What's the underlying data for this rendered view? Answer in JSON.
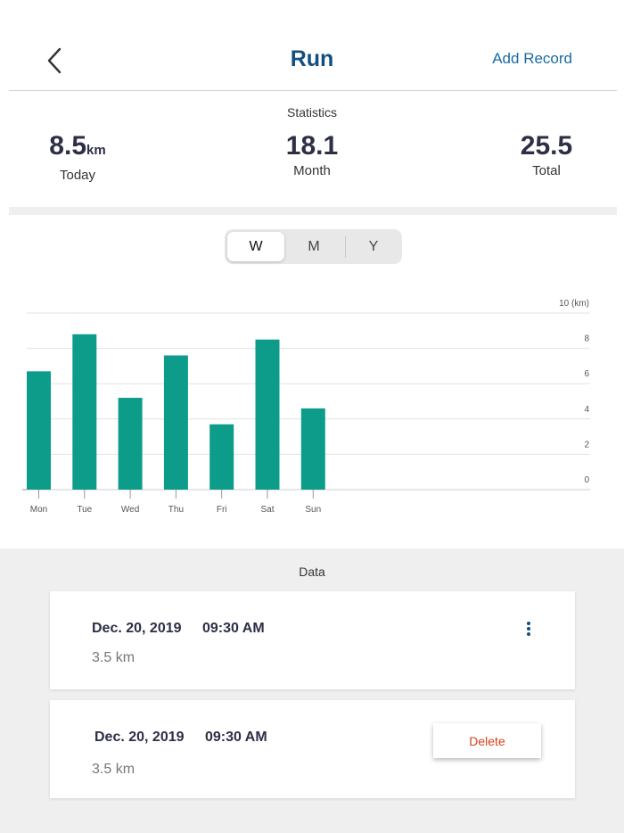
{
  "header": {
    "title": "Run",
    "add_record": "Add Record"
  },
  "statistics": {
    "label": "Statistics",
    "today": {
      "value": "8.5",
      "unit": "km",
      "label": "Today"
    },
    "month": {
      "value": "18.1",
      "label": "Month"
    },
    "total": {
      "value": "25.5",
      "label": "Total"
    }
  },
  "period_tabs": {
    "items": [
      "W",
      "M",
      "Y"
    ],
    "selected": "W"
  },
  "colors": {
    "bar": "#0d9c8a",
    "title": "#124f80",
    "link": "#1a6aa5",
    "delete": "#d6421c"
  },
  "chart_data": {
    "type": "bar",
    "categories": [
      "Mon",
      "Tue",
      "Wed",
      "Thu",
      "Fri",
      "Sat",
      "Sun"
    ],
    "values": [
      6.7,
      8.8,
      5.2,
      7.6,
      3.7,
      8.5,
      4.6
    ],
    "ylim": [
      0,
      10
    ],
    "yticks": [
      0,
      2,
      4,
      6,
      8,
      10
    ],
    "ytick_labels": [
      "0",
      "2",
      "4",
      "6",
      "8",
      "10 (km)"
    ],
    "grid": true
  },
  "data_section": {
    "label": "Data",
    "records": [
      {
        "date": "Dec. 20, 2019",
        "time": "09:30 AM",
        "distance": "3.5 km"
      },
      {
        "date": "Dec. 20, 2019",
        "time": "09:30 AM",
        "distance": "3.5 km",
        "action_label": "Delete"
      }
    ]
  }
}
